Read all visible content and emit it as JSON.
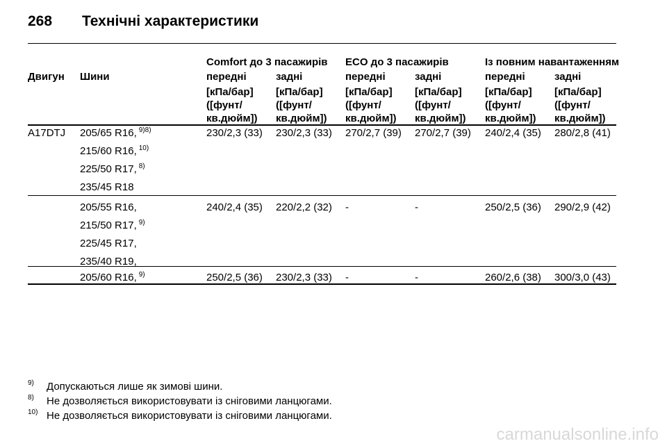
{
  "header": {
    "page_number": "268",
    "title": "Технічні характеристики"
  },
  "table": {
    "group_headers": [
      "Comfort до 3 пасажирів",
      "ECO до 3 пасажирів",
      "Із повним навантаженням"
    ],
    "column_headers": [
      "Двигун",
      "Шини",
      "передні",
      "задні",
      "передні",
      "задні",
      "передні",
      "задні"
    ],
    "units": [
      "[кПа/бар] ([фунт/ кв.дюйм])",
      "[кПа/бар] ([фунт/ кв.дюйм])",
      "[кПа/бар] ([фунт/ кв.дюйм])",
      "[кПа/бар] ([фунт/ кв.дюйм])",
      "[кПа/бар] ([фунт/ кв.дюйм])",
      "[кПа/бар] ([фунт/ кв.дюйм])"
    ],
    "rows": [
      {
        "engine": "A17DTJ",
        "tyres": [
          {
            "text": "205/65 R16,",
            "sup": "9)8)"
          },
          {
            "text": "215/60 R16,",
            "sup": "10)"
          },
          {
            "text": "225/50 R17,",
            "sup": "8)"
          },
          {
            "text": "235/45 R18"
          }
        ],
        "values": [
          "230/2,3 (33)",
          "230/2,3 (33)",
          "270/2,7 (39)",
          "270/2,7 (39)",
          "240/2,4 (35)",
          "280/2,8 (41)"
        ]
      },
      {
        "tyres": [
          {
            "text": "205/55 R16,"
          },
          {
            "text": "215/50 R17,",
            "sup": "9)"
          },
          {
            "text": "225/45 R17,"
          },
          {
            "text": "235/40 R19,"
          }
        ],
        "values": [
          "240/2,4 (35)",
          "220/2,2 (32)",
          "-",
          "-",
          "250/2,5 (36)",
          "290/2,9 (42)"
        ]
      },
      {
        "tyres": [
          {
            "text": "205/60 R16,",
            "sup": "9)"
          }
        ],
        "values": [
          "250/2,5 (36)",
          "230/2,3 (33)",
          "-",
          "-",
          "260/2,6 (38)",
          "300/3,0 (43)"
        ]
      }
    ]
  },
  "footnotes": [
    {
      "mark": "9)",
      "text": "Допускаються лише як зимові шини."
    },
    {
      "mark": "8)",
      "text": "Не дозволяється використовувати із сніговими ланцюгами."
    },
    {
      "mark": "10)",
      "text": "Не дозволяється використовувати із сніговими ланцюгами."
    }
  ],
  "watermark": "carmanualsonline.info"
}
